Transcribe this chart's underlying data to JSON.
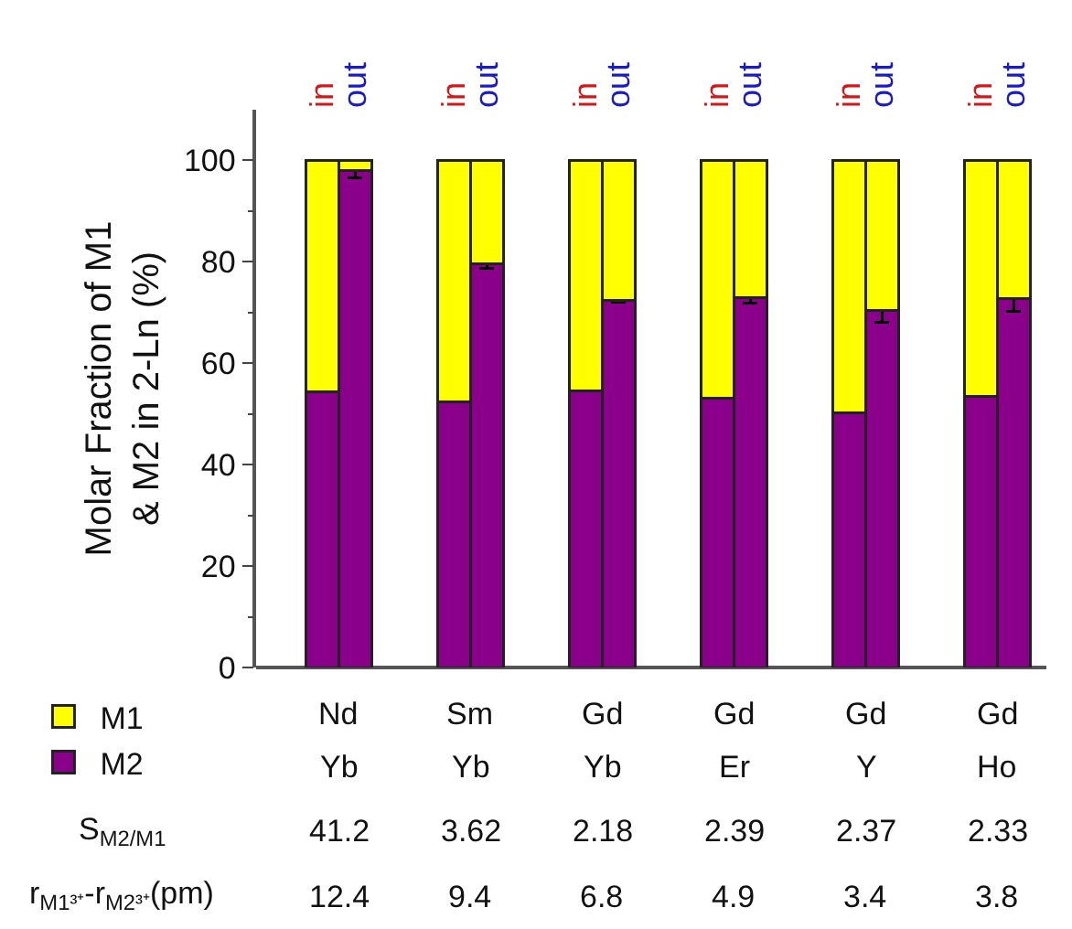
{
  "chart_data": {
    "type": "bar",
    "stacked": true,
    "ylabel": "Molar Fraction of M1\n& M2 in 2-Ln (%)",
    "categories": [
      "in",
      "out",
      "in",
      "out",
      "in",
      "out",
      "in",
      "out",
      "in",
      "out",
      "in",
      "out"
    ],
    "series": [
      {
        "name": "M2",
        "color": "#8b008b",
        "values": [
          54.3,
          98.1,
          52.3,
          79.7,
          54.6,
          72.4,
          53.1,
          72.9,
          50.2,
          70.5,
          53.4,
          72.7
        ],
        "errors": [
          null,
          1.5,
          null,
          1.0,
          null,
          0.3,
          null,
          1.0,
          null,
          2.5,
          null,
          2.5
        ]
      },
      {
        "name": "M1",
        "color": "#ffff00",
        "values": [
          45.7,
          1.9,
          47.7,
          20.3,
          45.4,
          27.6,
          46.9,
          27.1,
          49.8,
          29.5,
          46.6,
          27.3
        ]
      }
    ],
    "ylim": [
      0,
      110
    ],
    "yticks": [
      0,
      {
        "value": 10,
        "label": null
      },
      20,
      {
        "value": 30,
        "label": null
      },
      40,
      {
        "value": 50,
        "label": null
      },
      60,
      {
        "value": 70,
        "label": null
      },
      80,
      {
        "value": 90,
        "label": null
      },
      100
    ],
    "legend": "bottom left",
    "grid": false,
    "annotations": [
      "Nd",
      "Sm",
      "Gd",
      "Gd",
      "Gd",
      "Gd",
      "Yb",
      "Yb",
      "Yb",
      "Er",
      "Y",
      "Ho",
      "S$_{M2/M1}$",
      "41.2",
      "3.62",
      "2.18",
      "2.39",
      "2.37",
      "2.33",
      "r$_{M1³⁺}$-r$_{M2³⁺}$(pm)",
      "12.4",
      "9.4",
      "6.8",
      "4.9",
      "3.4",
      "3.8"
    ]
  }
}
